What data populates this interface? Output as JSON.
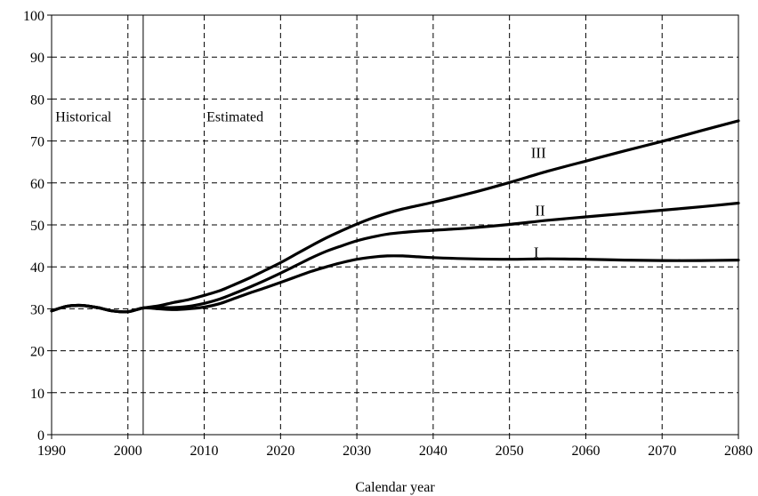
{
  "chart_data": {
    "type": "line",
    "title": "",
    "xlabel": "Calendar year",
    "ylabel": "",
    "xlim": [
      1990,
      2080
    ],
    "ylim": [
      0,
      100
    ],
    "x_ticks": [
      1990,
      2000,
      2010,
      2020,
      2030,
      2040,
      2050,
      2060,
      2070,
      2080
    ],
    "y_ticks": [
      0,
      10,
      20,
      30,
      40,
      50,
      60,
      70,
      80,
      90,
      100
    ],
    "grid": true,
    "annotations": [
      {
        "text": "Historical",
        "x": 1990.5,
        "y": 76
      },
      {
        "text": "Estimated",
        "x": 2010.3,
        "y": 76
      }
    ],
    "divider_year": 2002,
    "series": [
      {
        "name": "I",
        "label_at": {
          "x": 2053.5,
          "y": 43.5
        },
        "x": [
          1990,
          1992,
          1994,
          1996,
          1998,
          2000,
          2002,
          2004,
          2006,
          2008,
          2010,
          2012,
          2014,
          2016,
          2018,
          2020,
          2022,
          2024,
          2026,
          2028,
          2030,
          2032,
          2034,
          2036,
          2038,
          2040,
          2045,
          2050,
          2055,
          2060,
          2065,
          2070,
          2075,
          2080
        ],
        "values": [
          29.5,
          30.6,
          30.8,
          30.3,
          29.5,
          29.3,
          30.2,
          30.0,
          29.8,
          30.0,
          30.4,
          31.2,
          32.5,
          33.8,
          35.0,
          36.3,
          37.6,
          38.9,
          40.0,
          41.0,
          41.8,
          42.3,
          42.6,
          42.6,
          42.4,
          42.2,
          41.9,
          41.8,
          41.9,
          41.8,
          41.6,
          41.5,
          41.5,
          41.6
        ]
      },
      {
        "name": "II",
        "label_at": {
          "x": 2054,
          "y": 53.5
        },
        "x": [
          1990,
          1992,
          1994,
          1996,
          1998,
          2000,
          2002,
          2004,
          2006,
          2008,
          2010,
          2012,
          2014,
          2016,
          2018,
          2020,
          2022,
          2024,
          2026,
          2028,
          2030,
          2032,
          2034,
          2036,
          2038,
          2040,
          2045,
          2050,
          2055,
          2060,
          2065,
          2070,
          2075,
          2080
        ],
        "values": [
          29.5,
          30.6,
          30.8,
          30.3,
          29.5,
          29.3,
          30.2,
          30.3,
          30.3,
          30.6,
          31.3,
          32.3,
          33.7,
          35.2,
          36.8,
          38.5,
          40.3,
          42.1,
          43.7,
          45.0,
          46.2,
          47.1,
          47.8,
          48.2,
          48.5,
          48.7,
          49.3,
          50.1,
          51.1,
          51.9,
          52.7,
          53.5,
          54.3,
          55.2
        ]
      },
      {
        "name": "III",
        "label_at": {
          "x": 2053.8,
          "y": 67.3
        },
        "x": [
          1990,
          1992,
          1994,
          1996,
          1998,
          2000,
          2002,
          2004,
          2006,
          2008,
          2010,
          2012,
          2014,
          2016,
          2018,
          2020,
          2022,
          2024,
          2026,
          2028,
          2030,
          2032,
          2034,
          2036,
          2038,
          2040,
          2045,
          2050,
          2055,
          2060,
          2065,
          2070,
          2075,
          2080
        ],
        "values": [
          29.5,
          30.6,
          30.8,
          30.3,
          29.5,
          29.3,
          30.2,
          30.7,
          31.5,
          32.2,
          33.2,
          34.3,
          35.8,
          37.4,
          39.2,
          41.0,
          43.0,
          45.0,
          46.9,
          48.6,
          50.2,
          51.6,
          52.8,
          53.8,
          54.6,
          55.4,
          57.6,
          60.1,
          62.8,
          65.2,
          67.6,
          69.9,
          72.4,
          74.8
        ]
      }
    ]
  }
}
